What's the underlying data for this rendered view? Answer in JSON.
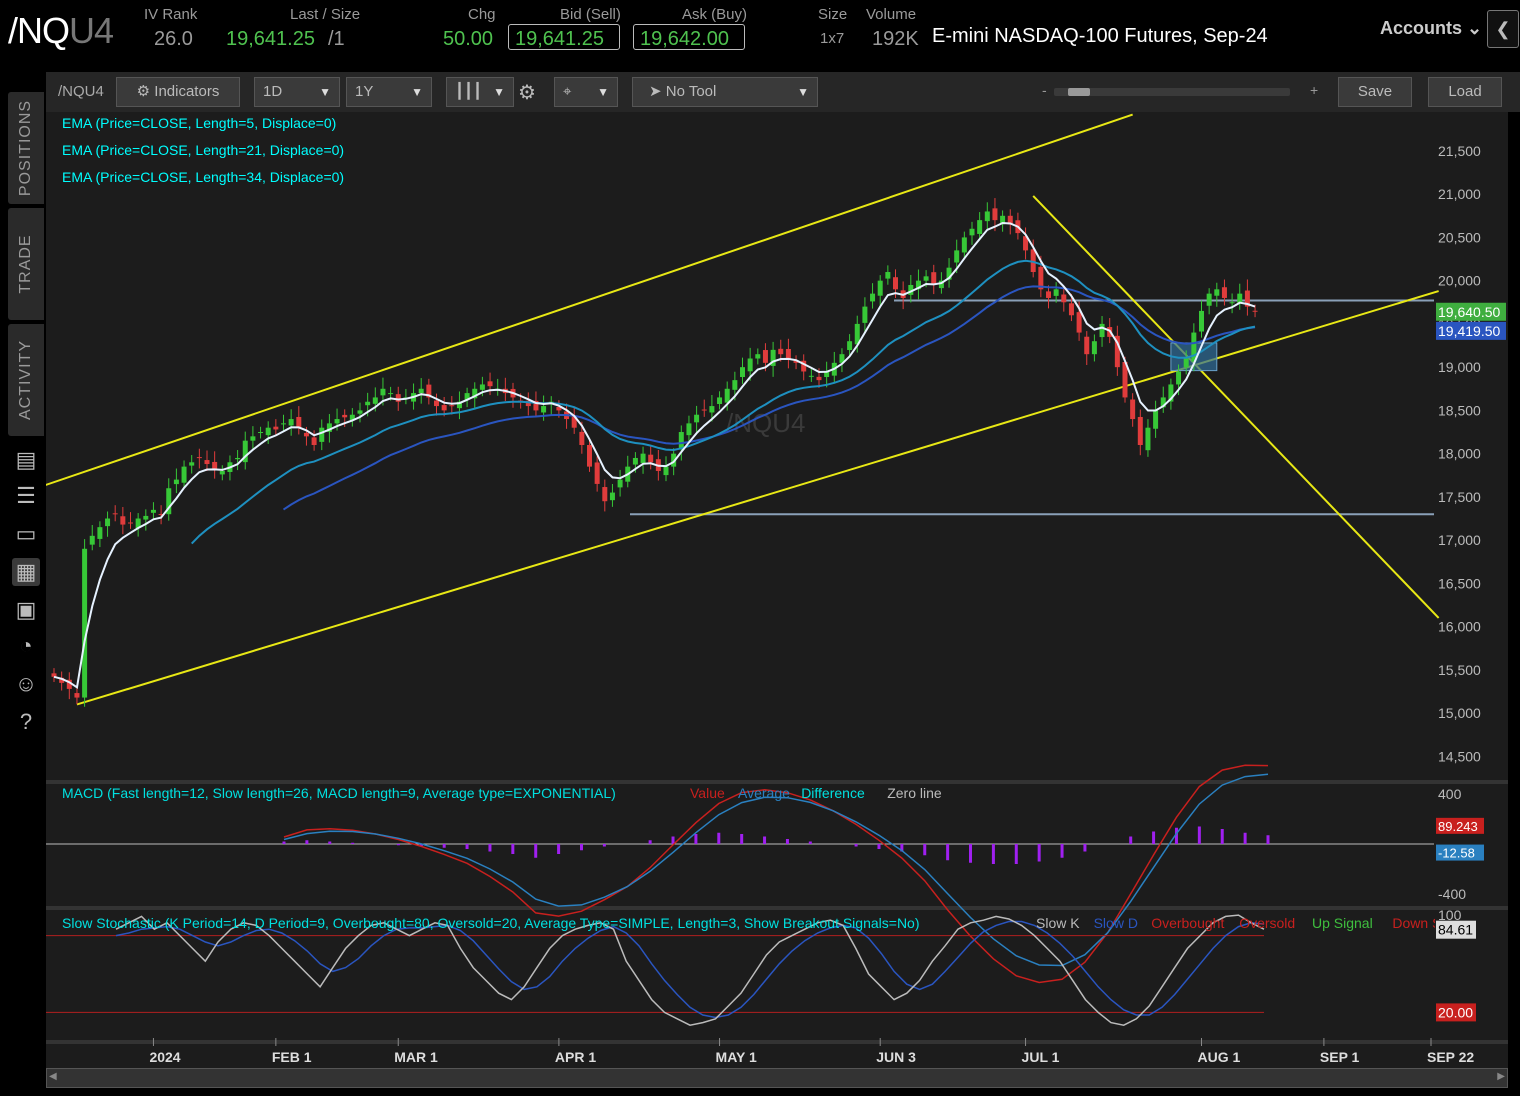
{
  "header": {
    "symbol_main": "/NQ",
    "symbol_suffix": "U4",
    "iv_rank_label": "IV Rank",
    "iv_rank_value": "26.0",
    "last_label": "Last / Size",
    "last_value": "19,641.25",
    "last_size": "/1",
    "chg_label": "Chg",
    "chg_value": "50.00",
    "bid_label": "Bid (Sell)",
    "bid_value": "19,641.25",
    "ask_label": "Ask (Buy)",
    "ask_value": "19,642.00",
    "size_label": "Size",
    "size_value": "1x7",
    "volume_label": "Volume",
    "volume_value": "192K",
    "description": "E-mini NASDAQ-100 Futures, Sep-24",
    "accounts_label": "Accounts",
    "collapse_icon": "chevron-left-icon"
  },
  "rail": {
    "tabs": [
      "POSITIONS",
      "TRADE",
      "ACTIVITY"
    ],
    "icons": [
      "news-icon",
      "list-icon",
      "tv-icon",
      "chart-icon",
      "grid-icon",
      "dashboard-icon",
      "people-icon",
      "help-icon"
    ]
  },
  "toolbar": {
    "symbol": "/NQU4",
    "indicators": "Indicators",
    "aggregation": "1D",
    "range": "1Y",
    "style_icon": "candlestick-icon",
    "settings_icon": "gear-icon",
    "drawing_icon": "crosshair-icon",
    "tool": "No Tool",
    "zoom_minus": "-",
    "zoom_plus": "+",
    "save": "Save",
    "load": "Load"
  },
  "chart_data": [
    {
      "type": "candlestick",
      "panel": "price",
      "watermark": "/NQU4",
      "study_labels": [
        "EMA (Price=CLOSE, Length=5, Displace=0)",
        "EMA (Price=CLOSE, Length=21, Displace=0)",
        "EMA (Price=CLOSE, Length=34, Displace=0)"
      ],
      "study_colors": [
        "#00ffff",
        "#00ffff",
        "#00ffff"
      ],
      "line_colors": {
        "ema5": "#e6f2ff",
        "ema21": "#1e90c0",
        "ema34": "#2a55c0",
        "trend": "#e8e815",
        "level": "#8aa0b8"
      },
      "ylim": [
        14250,
        21950
      ],
      "y_ticks": [
        "21,500",
        "21,000",
        "20,500",
        "20,000",
        "19,500",
        "19,000",
        "18,500",
        "18,000",
        "17,500",
        "17,000",
        "16,500",
        "16,000",
        "15,500",
        "15,000",
        "14,500"
      ],
      "x_ticks": [
        "2024",
        "FEB 1",
        "MAR 1",
        "APR 1",
        "MAY 1",
        "JUN 3",
        "JUL 1",
        "AUG 1",
        "SEP 1",
        "SEP 22"
      ],
      "price_badges": [
        {
          "label": "19,640.50",
          "value": 19640.5,
          "color": "#3fae3f"
        },
        {
          "label": "19,419.50",
          "value": 19419.5,
          "color": "#2a55c0"
        }
      ],
      "horizontal_levels": [
        19770,
        17300
      ],
      "closes": [
        15420,
        15350,
        15280,
        15180,
        16900,
        17050,
        17150,
        17250,
        17300,
        17180,
        17200,
        17250,
        17280,
        17350,
        17300,
        17600,
        17700,
        17850,
        17900,
        17950,
        17880,
        17820,
        17800,
        17900,
        17950,
        18150,
        18200,
        18250,
        18300,
        18280,
        18350,
        18400,
        18300,
        18200,
        18100,
        18300,
        18350,
        18400,
        18420,
        18450,
        18500,
        18600,
        18650,
        18750,
        18700,
        18600,
        18650,
        18700,
        18750,
        18650,
        18550,
        18500,
        18550,
        18600,
        18700,
        18750,
        18800,
        18780,
        18750,
        18700,
        18650,
        18600,
        18550,
        18500,
        18550,
        18600,
        18500,
        18400,
        18300,
        18100,
        17850,
        17650,
        17450,
        17550,
        17700,
        17850,
        17950,
        18000,
        17900,
        17800,
        17850,
        18000,
        18250,
        18350,
        18450,
        18500,
        18550,
        18650,
        18750,
        18850,
        19000,
        19100,
        19150,
        19050,
        19200,
        19150,
        19100,
        19050,
        18950,
        18900,
        18850,
        18950,
        19050,
        19150,
        19300,
        19500,
        19700,
        19850,
        20000,
        20100,
        19900,
        19800,
        19950,
        20000,
        20050,
        19950,
        20000,
        20150,
        20350,
        20500,
        20600,
        20700,
        20800,
        20700,
        20750,
        20650,
        20550,
        20350,
        20100,
        19900,
        19800,
        19900,
        19750,
        19600,
        19400,
        19150,
        19300,
        19500,
        19350,
        19000,
        18650,
        18400,
        18100,
        18300,
        18500,
        18650,
        18800,
        18950,
        19100,
        19400,
        19650,
        19850,
        19900,
        19800,
        19750,
        19850,
        19700,
        19641
      ]
    },
    {
      "type": "bar",
      "panel": "macd",
      "label": "MACD (Fast length=12, Slow length=26, MACD length=9, Average type=EXPONENTIAL)",
      "legend": [
        {
          "name": "Value",
          "color": "#c8201e"
        },
        {
          "name": "Average",
          "color": "#2a80c0"
        },
        {
          "name": "Difference",
          "color": "#00e0e0"
        },
        {
          "name": "Zero line",
          "color": "#bbbbbb"
        }
      ],
      "ylim": [
        -480,
        480
      ],
      "y_ticks": [
        "400",
        "-400"
      ],
      "badges": [
        {
          "label": "89.243",
          "value": 89.243,
          "color": "#c8201e"
        },
        {
          "label": "-12.58",
          "value": -12.58,
          "color": "#2a80c0"
        }
      ],
      "difference": [
        20,
        30,
        20,
        10,
        0,
        -10,
        -20,
        -30,
        -40,
        -60,
        -80,
        -110,
        -80,
        -50,
        -20,
        0,
        30,
        60,
        80,
        90,
        80,
        60,
        40,
        20,
        0,
        -20,
        -40,
        -60,
        -90,
        -130,
        -150,
        -160,
        -160,
        -140,
        -110,
        -60,
        0,
        60,
        100,
        130,
        140,
        120,
        90,
        70
      ]
    },
    {
      "type": "line",
      "panel": "stochastic",
      "label": "Slow Stochastic (K Period=14, D Period=9, Overbought=80, Oversold=20, Average Type=SIMPLE, Length=3, Show Breakout Signals=No)",
      "legend": [
        {
          "name": "Slow K",
          "color": "#bbbbbb"
        },
        {
          "name": "Slow D",
          "color": "#2a55c0"
        },
        {
          "name": "Overbought",
          "color": "#c8201e"
        },
        {
          "name": "Oversold",
          "color": "#c8201e"
        },
        {
          "name": "Up Signal",
          "color": "#3fbf3f"
        },
        {
          "name": "Down Signal",
          "color": "#c8201e"
        }
      ],
      "ylim": [
        0,
        100
      ],
      "levels": [
        80,
        20
      ],
      "y_ticks": [
        "100"
      ],
      "badges": [
        {
          "label": "84.61",
          "value": 84.61,
          "color": "#dddddd"
        },
        {
          "label": "20.00",
          "value": 20,
          "color": "#c8201e"
        }
      ],
      "slow_k": [
        85,
        90,
        95,
        85,
        90,
        80,
        70,
        60,
        75,
        85,
        90,
        88,
        80,
        70,
        60,
        50,
        40,
        55,
        70,
        80,
        88,
        90,
        85,
        80,
        85,
        90,
        88,
        70,
        55,
        45,
        35,
        30,
        40,
        55,
        70,
        80,
        85,
        88,
        90,
        85,
        60,
        45,
        30,
        20,
        15,
        10,
        12,
        15,
        25,
        35,
        50,
        65,
        75,
        80,
        85,
        90,
        92,
        88,
        70,
        50,
        40,
        30,
        35,
        45,
        60,
        72,
        85,
        90,
        92,
        95,
        93,
        88,
        80,
        70,
        60,
        45,
        30,
        20,
        12,
        10,
        15,
        25,
        40,
        55,
        70,
        80,
        90,
        95,
        96,
        90,
        85
      ],
      "slow_d": [
        80,
        82,
        85,
        86,
        87,
        85,
        80,
        75,
        72,
        75,
        80,
        84,
        85,
        82,
        76,
        68,
        58,
        52,
        55,
        62,
        72,
        80,
        85,
        86,
        86,
        87,
        88,
        84,
        76,
        65,
        54,
        44,
        38,
        40,
        48,
        60,
        70,
        78,
        84,
        87,
        82,
        72,
        58,
        45,
        34,
        24,
        18,
        16,
        18,
        24,
        34,
        46,
        58,
        68,
        76,
        82,
        86,
        88,
        86,
        78,
        66,
        52,
        42,
        38,
        42,
        52,
        63,
        74,
        83,
        88,
        91,
        91,
        88,
        82,
        74,
        64,
        52,
        40,
        30,
        22,
        18,
        18,
        24,
        34,
        46,
        58,
        70,
        80,
        87,
        90,
        89
      ]
    }
  ]
}
